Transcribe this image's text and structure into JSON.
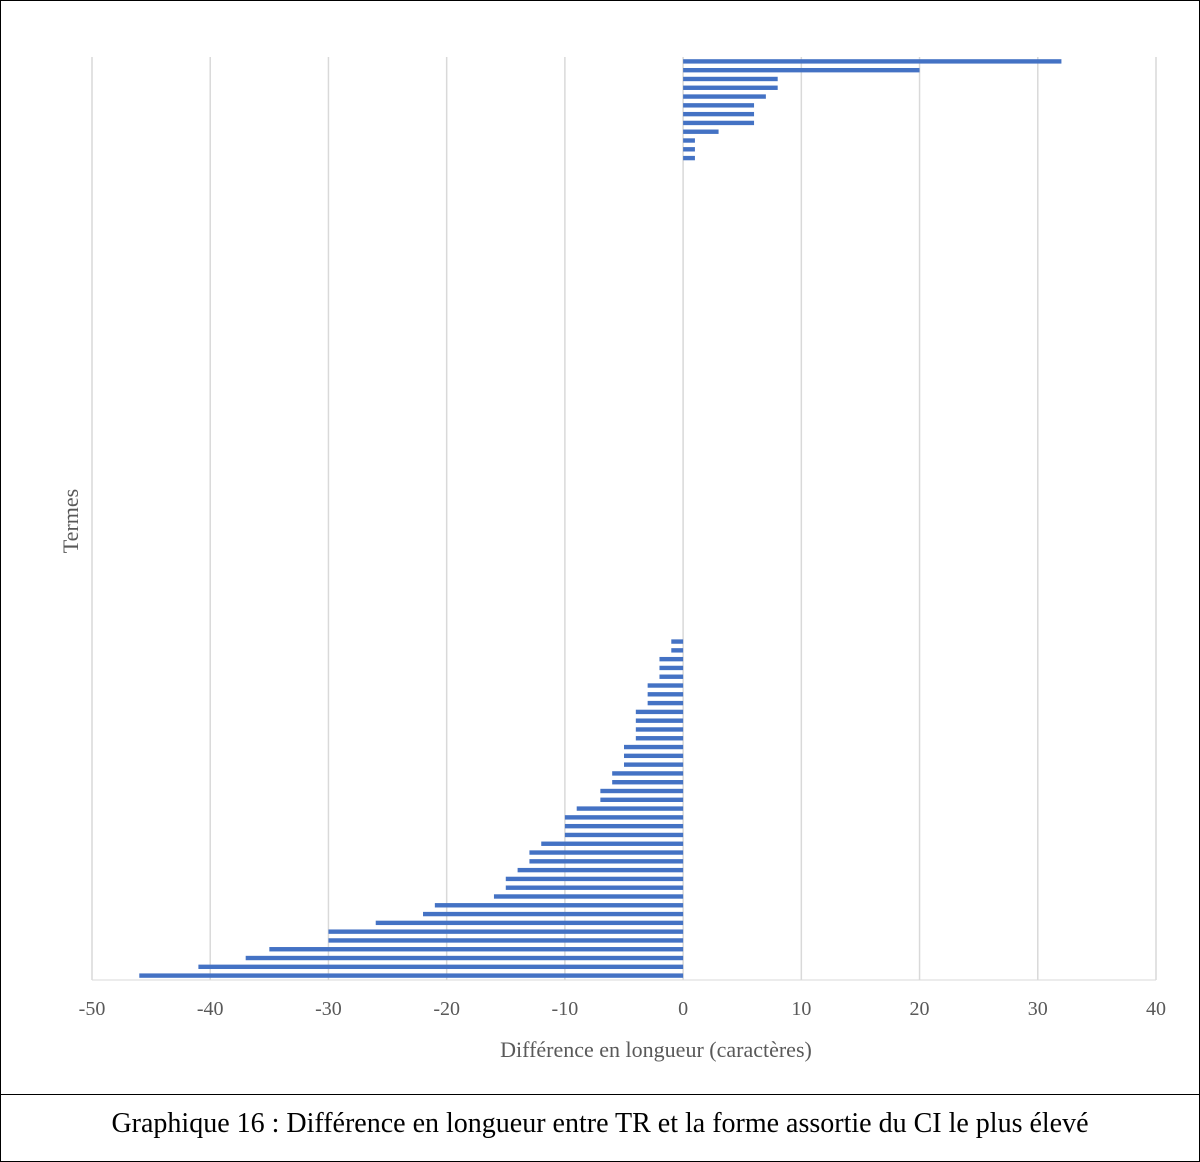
{
  "caption": "Graphique 16 : Différence en longueur entre TR et la forme assortie du CI le plus élevé",
  "chart_data": {
    "type": "bar",
    "orientation": "horizontal",
    "title": "",
    "xlabel": "Différence en longueur (caractères)",
    "ylabel": "Termes",
    "xlim": [
      -50,
      40
    ],
    "xticks": [
      -50,
      -40,
      -30,
      -20,
      -10,
      0,
      10,
      20,
      30,
      40
    ],
    "grid": true,
    "bar_color": "#4472c4",
    "values_top_to_bottom": [
      32,
      20,
      8,
      8,
      7,
      6,
      6,
      6,
      3,
      1,
      1,
      1,
      0,
      0,
      0,
      0,
      0,
      0,
      0,
      0,
      0,
      0,
      0,
      0,
      0,
      0,
      0,
      0,
      0,
      0,
      0,
      0,
      0,
      0,
      0,
      0,
      0,
      0,
      0,
      0,
      0,
      0,
      0,
      0,
      0,
      0,
      0,
      0,
      0,
      0,
      0,
      0,
      0,
      0,
      0,
      0,
      0,
      0,
      0,
      0,
      0,
      0,
      0,
      0,
      0,
      0,
      -1,
      -1,
      -2,
      -2,
      -2,
      -3,
      -3,
      -3,
      -4,
      -4,
      -4,
      -4,
      -5,
      -5,
      -5,
      -6,
      -6,
      -7,
      -7,
      -9,
      -10,
      -10,
      -10,
      -12,
      -13,
      -13,
      -14,
      -15,
      -15,
      -16,
      -21,
      -22,
      -26,
      -30,
      -30,
      -35,
      -37,
      -41,
      -46
    ]
  }
}
